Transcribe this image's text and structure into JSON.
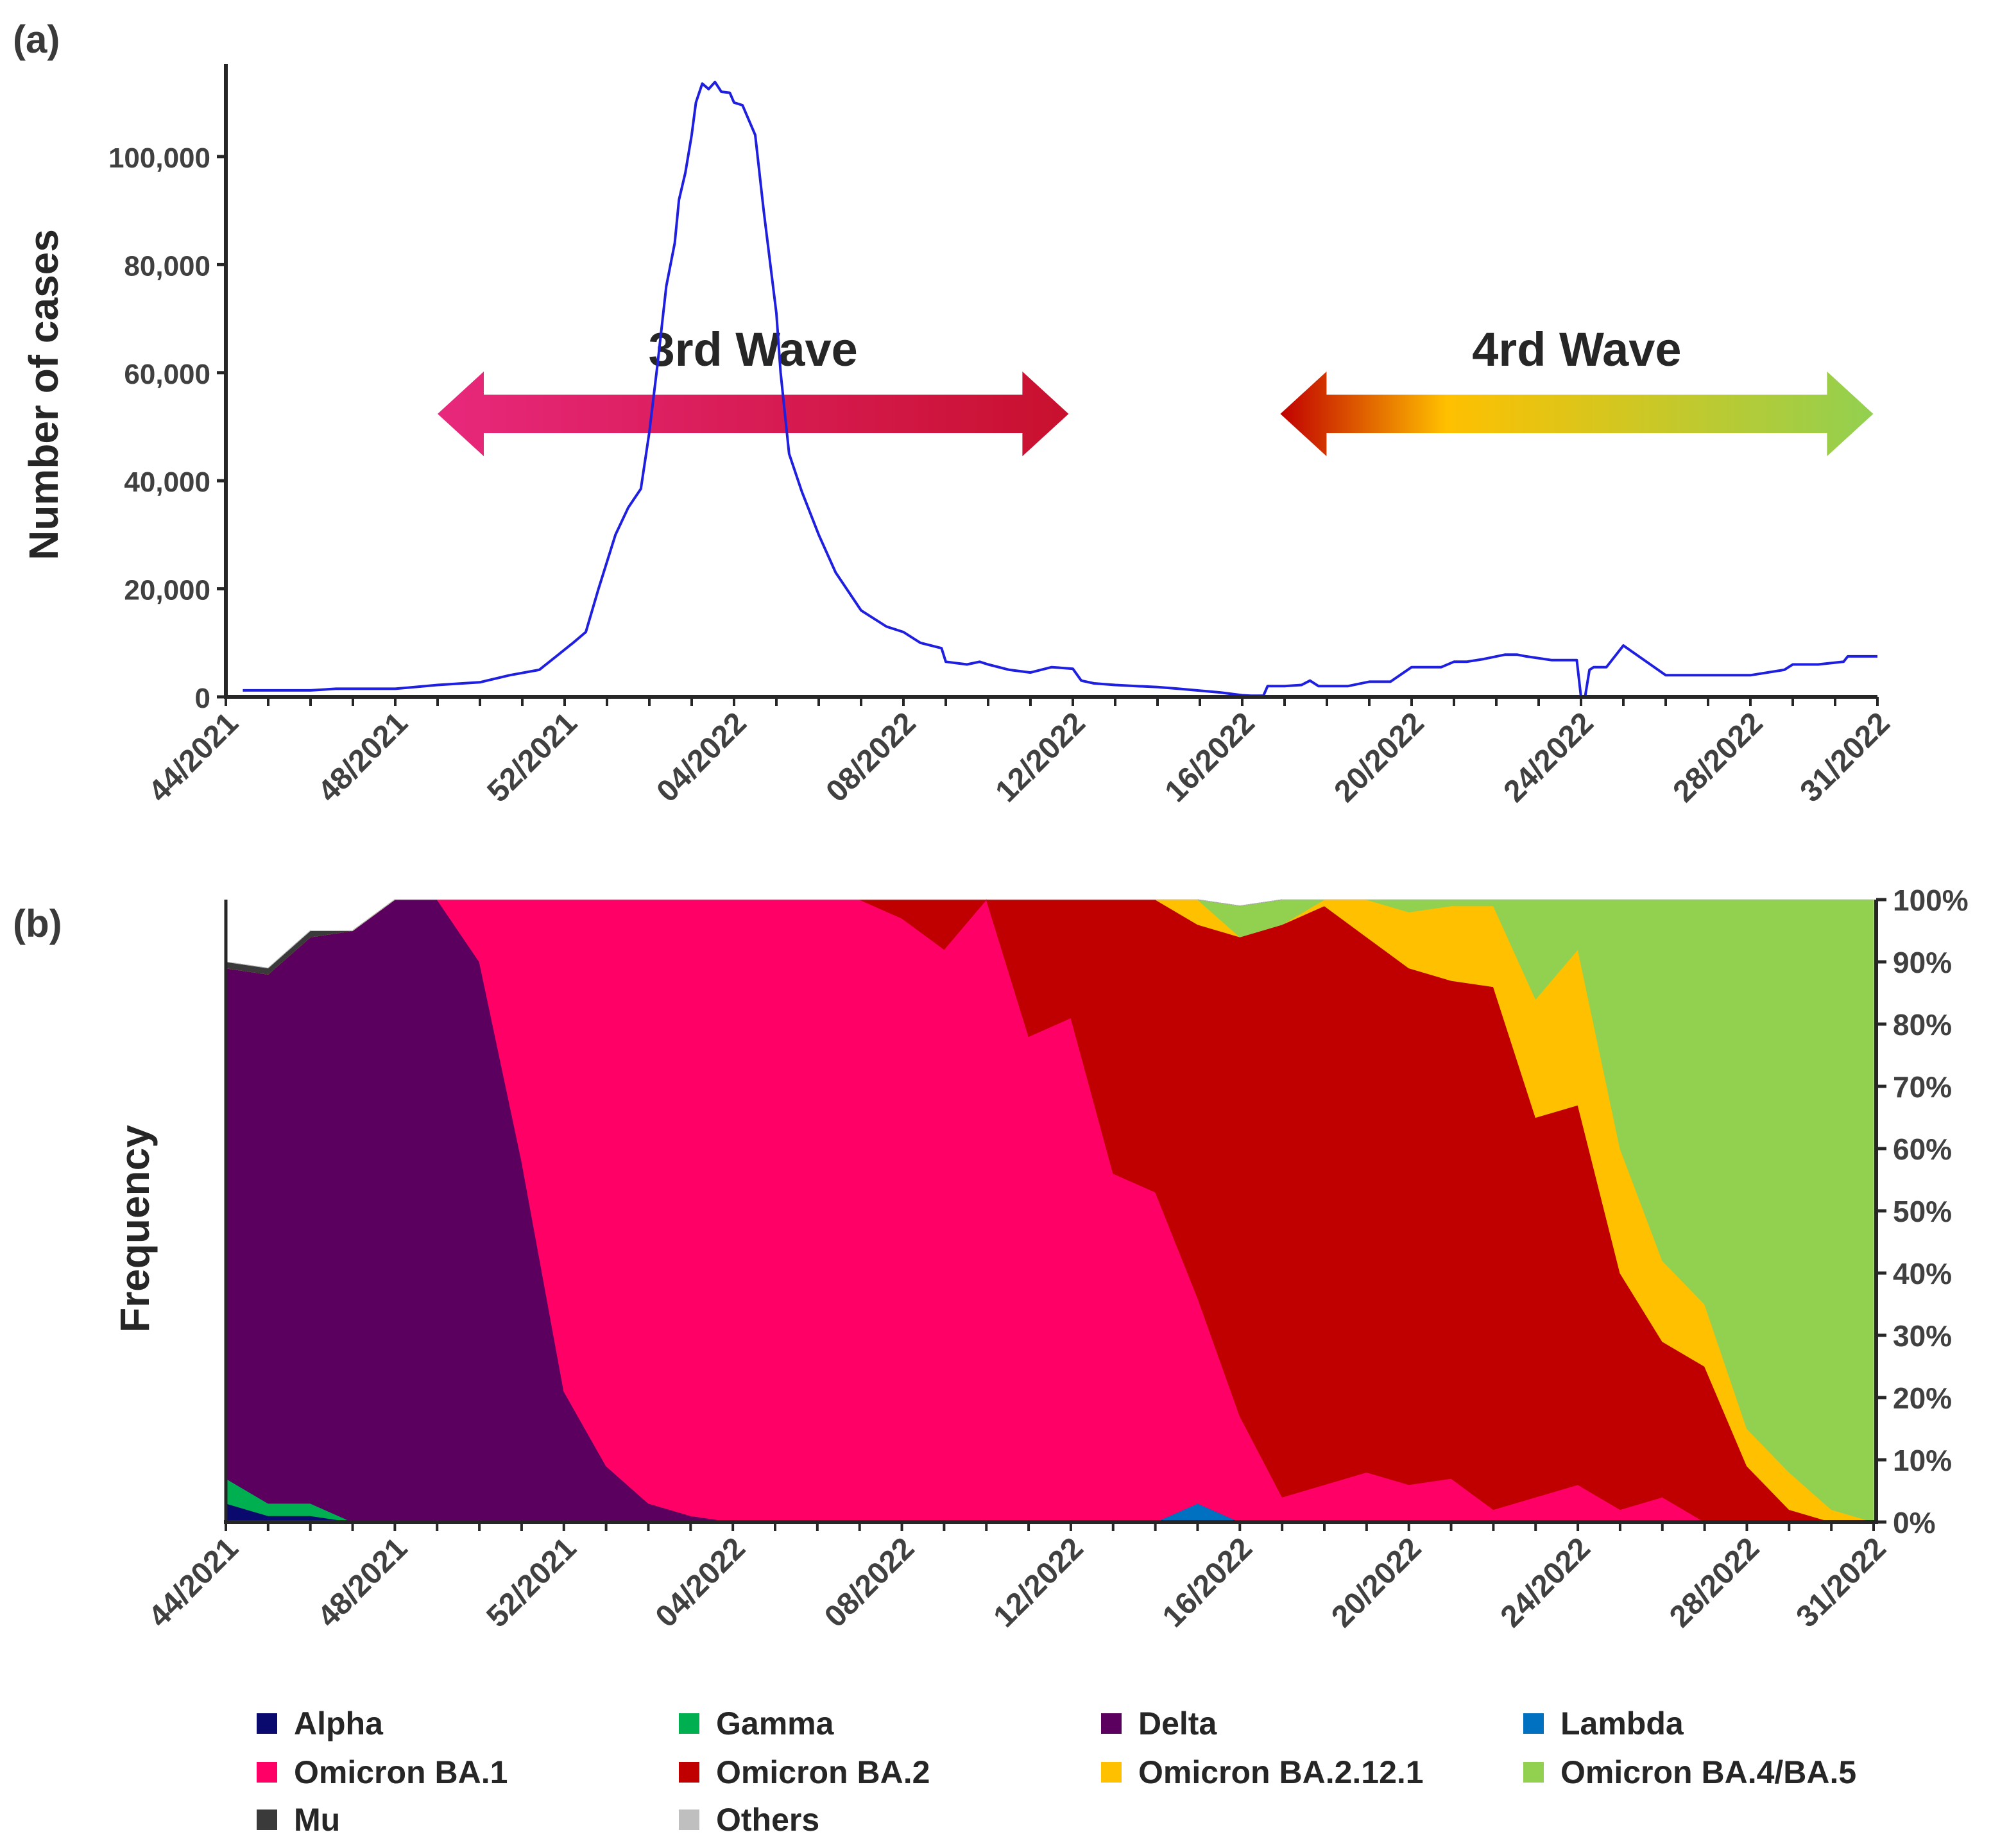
{
  "figure": {
    "panel_a_label": "(a)",
    "panel_b_label": "(b)"
  },
  "colors": {
    "Alpha": "#0a0a6e",
    "Gamma": "#00b050",
    "Delta": "#5c0060",
    "Lambda": "#0070c0",
    "Omicron BA.1": "#ff0066",
    "Omicron BA.2": "#c00000",
    "Omicron BA.2.12.1": "#ffc000",
    "Omicron BA.4/BA.5": "#92d050",
    "Mu": "#3a3a3a",
    "Others": "#bfbfbf",
    "cases_line": "#1f1fe0",
    "wave3_start": "#e8287c",
    "wave3_end": "#c8102e",
    "wave4_start": "#c00000",
    "wave4_mid": "#ffc000",
    "wave4_end": "#92d050"
  },
  "chart_data": [
    {
      "type": "line",
      "ylabel": "Number of cases",
      "ylim": [
        0,
        115000
      ],
      "yticks": [
        "0",
        "20,000",
        "40,000",
        "60,000",
        "80,000",
        "100,000"
      ],
      "ytick_values": [
        0,
        20000,
        40000,
        60000,
        80000,
        100000
      ],
      "xlim": [
        44,
        83
      ],
      "xticks": [
        "44/2021",
        "48/2021",
        "52/2021",
        "04/2022",
        "08/2022",
        "12/2022",
        "16/2022",
        "20/2022",
        "24/2022",
        "28/2022",
        "31/2022"
      ],
      "xtick_values": [
        44,
        48,
        52,
        56,
        60,
        64,
        68,
        72,
        76,
        80,
        83
      ],
      "annotations": [
        {
          "text": "3rd Wave",
          "from": 49.0,
          "to": 63.9
        },
        {
          "text": "4rd Wave",
          "from": 68.9,
          "to": 82.9
        }
      ],
      "series": [
        {
          "x": [
            44.4,
            46.0,
            46.6,
            48.0,
            49.0,
            50.0,
            50.7,
            51.4,
            51.8,
            52.2,
            52.5,
            52.8,
            53.2,
            53.5,
            53.8,
            54.0,
            54.2,
            54.4,
            54.6,
            54.7,
            54.85,
            55.0,
            55.1,
            55.25,
            55.4,
            55.55,
            55.7,
            55.9,
            56.0,
            56.2,
            56.5,
            56.7,
            57.0,
            57.1,
            57.3,
            57.6,
            58.0,
            58.4,
            59.0,
            59.6,
            60.0,
            60.4,
            60.9,
            61.0,
            61.5,
            61.8,
            62.0,
            62.5,
            63.0,
            63.5,
            64.0,
            64.2,
            64.5,
            65.0,
            65.5,
            66.0,
            66.5,
            67.5,
            68.0,
            68.2,
            68.5,
            68.6,
            69.0,
            69.4,
            69.6,
            69.8,
            70.5,
            71.0,
            71.5,
            72.0,
            72.4,
            72.7,
            73.0,
            73.3,
            73.7,
            74.2,
            74.5,
            74.7,
            75.3,
            75.5,
            75.7,
            75.9,
            76.0,
            76.1,
            76.2,
            76.3,
            76.4,
            76.6,
            77.0,
            78.0,
            79.0,
            79.5,
            80.0,
            80.8,
            81.0,
            81.6,
            82.2,
            82.3,
            83.0
          ],
          "y": [
            1200,
            1200,
            1500,
            1500,
            2200,
            2700,
            4000,
            5000,
            7500,
            10000,
            12000,
            20000,
            30000,
            35000,
            38500,
            49000,
            62000,
            76000,
            84000,
            92000,
            97000,
            104000,
            110000,
            113500,
            112500,
            113800,
            112000,
            111800,
            110000,
            109500,
            104000,
            90000,
            71000,
            60000,
            45000,
            38000,
            30000,
            23000,
            16000,
            13000,
            12000,
            10000,
            9000,
            6500,
            6000,
            6500,
            6000,
            5000,
            4500,
            5500,
            5200,
            3000,
            2500,
            2200,
            2000,
            1800,
            1500,
            800,
            300,
            200,
            200,
            2000,
            2000,
            2200,
            3000,
            2000,
            2000,
            2800,
            2800,
            5500,
            5500,
            5500,
            6500,
            6500,
            7000,
            7800,
            7800,
            7500,
            6800,
            6800,
            6800,
            6800,
            0,
            200,
            5000,
            5500,
            5500,
            5500,
            9500,
            4000,
            4000,
            4000,
            4000,
            5000,
            6000,
            6000,
            6500,
            7500,
            7500
          ]
        }
      ]
    },
    {
      "type": "area",
      "ylabel": "Frequency",
      "ylim": [
        0,
        100
      ],
      "yticks": [
        "0%",
        "10%",
        "20%",
        "30%",
        "40%",
        "50%",
        "60%",
        "70%",
        "80%",
        "90%",
        "100%"
      ],
      "ytick_values": [
        0,
        10,
        20,
        30,
        40,
        50,
        60,
        70,
        80,
        90,
        100
      ],
      "xlim": [
        44,
        83
      ],
      "xticks": [
        "44/2021",
        "48/2021",
        "52/2021",
        "04/2022",
        "08/2022",
        "12/2022",
        "16/2022",
        "20/2022",
        "24/2022",
        "28/2022",
        "31/2022"
      ],
      "xtick_values": [
        44,
        48,
        52,
        56,
        60,
        64,
        68,
        72,
        76,
        80,
        83
      ],
      "x": [
        44,
        45,
        46,
        47,
        48,
        49,
        50,
        51,
        52,
        53,
        54,
        55,
        56,
        57,
        58,
        59,
        60,
        61,
        62,
        63,
        64,
        65,
        66,
        67,
        68,
        69,
        70,
        71,
        72,
        73,
        74,
        75,
        76,
        77,
        78,
        79,
        80,
        81,
        82,
        83
      ],
      "legend_order": [
        "Alpha",
        "Gamma",
        "Delta",
        "Lambda",
        "Omicron BA.1",
        "Omicron BA.2",
        "Omicron BA.2.12.1",
        "Omicron BA.4/BA.5",
        "Mu",
        "Others"
      ],
      "series": [
        {
          "name": "Alpha",
          "values": [
            3,
            1,
            1,
            0,
            0,
            0,
            0,
            0,
            0,
            0,
            0,
            0,
            0,
            0,
            0,
            0,
            0,
            0,
            0,
            0,
            0,
            0,
            0,
            0,
            0,
            0,
            0,
            0,
            0,
            0,
            0,
            0,
            0,
            0,
            0,
            0,
            0,
            0,
            0,
            0
          ]
        },
        {
          "name": "Gamma",
          "values": [
            4,
            2,
            2,
            0,
            0,
            0,
            0,
            0,
            0,
            0,
            0,
            0,
            0,
            0,
            0,
            0,
            0,
            0,
            0,
            0,
            0,
            0,
            0,
            0,
            0,
            0,
            0,
            0,
            0,
            0,
            0,
            0,
            0,
            0,
            0,
            0,
            0,
            0,
            0,
            0
          ]
        },
        {
          "name": "Lambda",
          "values": [
            0,
            0,
            0,
            0,
            0,
            0,
            0,
            0,
            0,
            0,
            0,
            0,
            0,
            0,
            0,
            0,
            0,
            0,
            0,
            0,
            0,
            0,
            0,
            3,
            0,
            0,
            0,
            0,
            0,
            0,
            0,
            0,
            0,
            0,
            0,
            0,
            0,
            0,
            0,
            0
          ]
        },
        {
          "name": "Delta",
          "values": [
            82,
            85,
            91,
            95,
            100,
            100,
            90,
            58,
            21,
            9,
            3,
            1,
            0,
            0,
            0,
            0,
            0,
            0,
            0,
            0,
            0,
            0,
            0,
            0,
            0,
            0,
            0,
            0,
            0,
            0,
            0,
            0,
            0,
            0,
            0,
            0,
            0,
            0,
            0,
            0
          ]
        },
        {
          "name": "Omicron BA.1",
          "values": [
            0,
            0,
            0,
            0,
            0,
            0,
            10,
            42,
            79,
            91,
            97,
            99,
            100,
            100,
            100,
            100,
            97,
            92,
            100,
            78,
            81,
            56,
            53,
            33,
            17,
            4,
            6,
            8,
            6,
            7,
            2,
            4,
            6,
            2,
            4,
            0,
            0,
            0,
            0,
            0
          ]
        },
        {
          "name": "Omicron BA.2",
          "values": [
            0,
            0,
            0,
            0,
            0,
            0,
            0,
            0,
            0,
            0,
            0,
            0,
            0,
            0,
            0,
            0,
            3,
            8,
            0,
            22,
            19,
            44,
            47,
            60,
            77,
            92,
            93,
            86,
            83,
            80,
            84,
            61,
            61,
            38,
            25,
            25,
            9,
            2,
            0,
            0
          ]
        },
        {
          "name": "Omicron BA.2.12.1",
          "values": [
            0,
            0,
            0,
            0,
            0,
            0,
            0,
            0,
            0,
            0,
            0,
            0,
            0,
            0,
            0,
            0,
            0,
            0,
            0,
            0,
            0,
            0,
            4,
            4,
            0,
            0,
            1,
            6,
            9,
            12,
            13,
            19,
            25,
            20,
            13,
            10,
            6,
            6,
            2,
            0
          ]
        },
        {
          "name": "Omicron BA.4/BA.5",
          "values": [
            0,
            0,
            0,
            0,
            0,
            0,
            0,
            0,
            0,
            0,
            0,
            0,
            0,
            0,
            0,
            0,
            0,
            0,
            0,
            0,
            0,
            0,
            0,
            0,
            5,
            4,
            0,
            0,
            2,
            1,
            1,
            16,
            8,
            40,
            58,
            65,
            85,
            92,
            98,
            100
          ]
        },
        {
          "name": "Mu",
          "values": [
            1,
            1,
            1,
            0,
            0,
            0,
            0,
            0,
            0,
            0,
            0,
            0,
            0,
            0,
            0,
            0,
            0,
            0,
            0,
            0,
            0,
            0,
            0,
            0,
            0,
            0,
            0,
            0,
            0,
            0,
            0,
            0,
            0,
            0,
            0,
            0,
            0,
            0,
            0,
            0
          ]
        },
        {
          "name": "Others",
          "values": [
            0,
            0,
            0,
            0,
            0,
            0,
            0,
            0,
            0,
            0,
            0,
            0,
            0,
            0,
            0,
            0,
            0,
            0,
            0,
            0,
            0,
            0,
            0,
            0,
            0,
            0,
            0,
            0,
            0,
            0,
            0,
            0,
            0,
            0,
            0,
            0,
            0,
            0,
            0,
            0
          ]
        }
      ]
    }
  ]
}
